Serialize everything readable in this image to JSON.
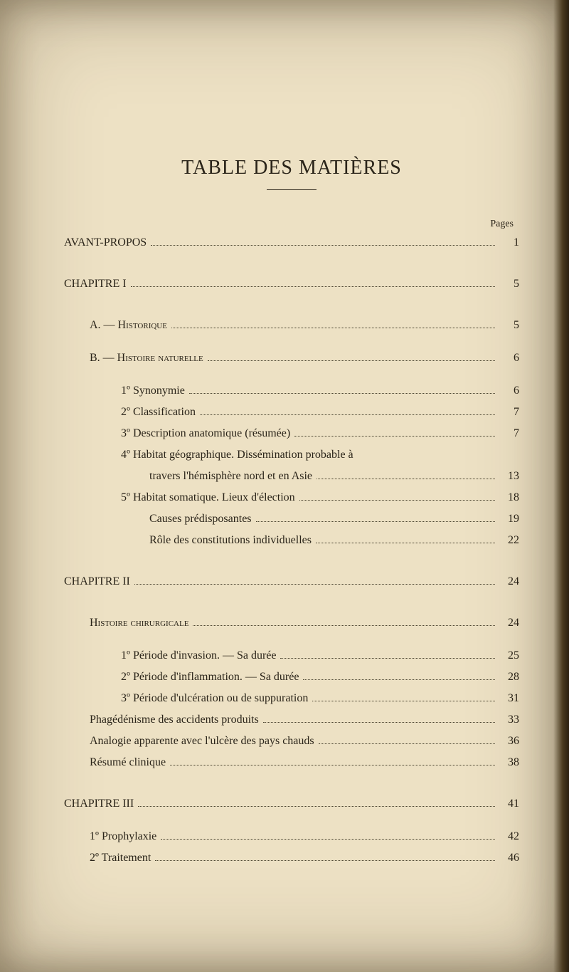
{
  "title": "TABLE DES MATIÈRES",
  "pages_label": "Pages",
  "entries": [
    {
      "label": "AVANT-PROPOS",
      "page": "1",
      "indent": 0,
      "gap_after": "md"
    },
    {
      "label": "CHAPITRE I",
      "page": "5",
      "indent": 0,
      "gap_after": "md"
    },
    {
      "label": "A. — Historique",
      "page": "5",
      "indent": 1,
      "style": "smallcaps",
      "gap_after": "sm"
    },
    {
      "label": "B. — Histoire naturelle",
      "page": "6",
      "indent": 1,
      "style": "smallcaps",
      "gap_after": "sm"
    },
    {
      "label": "1º Synonymie",
      "page": "6",
      "indent": 2
    },
    {
      "label": "2º Classification",
      "page": "7",
      "indent": 2
    },
    {
      "label": "3º Description anatomique (résumée)",
      "page": "7",
      "indent": 2
    },
    {
      "label": "4º Habitat géographique. Dissémination probable à",
      "indent": 2,
      "no_leader": true
    },
    {
      "label": "travers l'hémisphère nord et en Asie",
      "page": "13",
      "indent": 3
    },
    {
      "label": "5º Habitat somatique. Lieux d'élection",
      "page": "18",
      "indent": 2
    },
    {
      "label": "Causes prédisposantes",
      "page": "19",
      "indent": 3
    },
    {
      "label": "Rôle des constitutions individuelles",
      "page": "22",
      "indent": 3,
      "gap_after": "md"
    },
    {
      "label": "CHAPITRE II",
      "page": "24",
      "indent": 0,
      "gap_after": "md"
    },
    {
      "label": "Histoire chirurgicale",
      "page": "24",
      "indent": 1,
      "style": "smallcaps",
      "gap_after": "sm"
    },
    {
      "label": "1º Période d'invasion. — Sa durée",
      "page": "25",
      "indent": 2
    },
    {
      "label": "2º Période d'inflammation. — Sa durée",
      "page": "28",
      "indent": 2
    },
    {
      "label": "3º Période d'ulcération ou de suppuration",
      "page": "31",
      "indent": 2
    },
    {
      "label": "Phagédénisme des accidents produits",
      "page": "33",
      "indent": 1
    },
    {
      "label": "Analogie apparente avec l'ulcère des pays chauds",
      "page": "36",
      "indent": 1
    },
    {
      "label": "Résumé clinique",
      "page": "38",
      "indent": 1,
      "gap_after": "md"
    },
    {
      "label": "CHAPITRE III",
      "page": "41",
      "indent": 0,
      "gap_after": "sm"
    },
    {
      "label": "1º Prophylaxie",
      "page": "42",
      "indent": 1
    },
    {
      "label": "2º Traitement",
      "page": "46",
      "indent": 1
    }
  ]
}
